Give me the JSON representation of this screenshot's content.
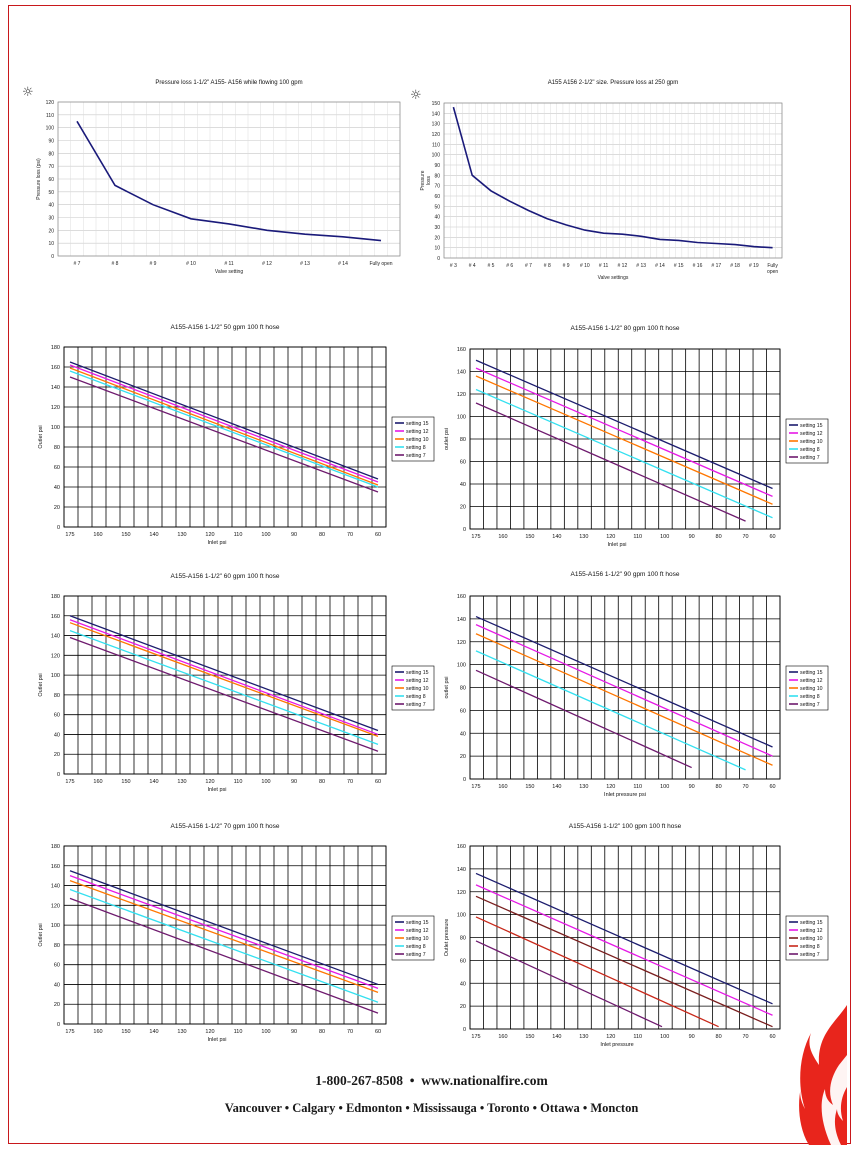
{
  "footer": {
    "phone": "1-800-267-8508",
    "separator": "•",
    "website": "www.nationalfire.com",
    "cities": "Vancouver • Calgary • Edmonton • Mississauga • Toronto • Ottawa • Moncton"
  },
  "colors": {
    "frame": "#c8181c",
    "curve": "#1a1a7a",
    "grid_light": "#c8c8c8",
    "grid_dark": "#000000",
    "setting_15": "#1c1c6e",
    "setting_12": "#e619e6",
    "setting_10": "#ff7700",
    "setting_8": "#33e0f0",
    "setting_7": "#6e1a6e",
    "setting_8_alt": "#c8281a",
    "flame": "#e8251c"
  },
  "icons": [
    "gear-icon",
    "gear-icon",
    "flame-logo"
  ],
  "chart_data": [
    {
      "type": "line",
      "title": "Pressure loss 1-1/2\" A155- A156 while flowing 100 gpm",
      "xlabel": "Valve setting",
      "ylabel": "Pressure loss (psi)",
      "ylim": [
        0,
        120
      ],
      "yticks": [
        0,
        10,
        20,
        30,
        40,
        50,
        60,
        70,
        80,
        90,
        100,
        110,
        120
      ],
      "categories": [
        "# 7",
        "# 8",
        "# 9",
        "# 10",
        "# 11",
        "# 12",
        "# 13",
        "# 14",
        "Fully open"
      ],
      "grid": true,
      "series": [
        {
          "color": "#1a1a7a",
          "values": [
            105,
            55,
            40,
            29,
            25,
            20,
            17,
            15,
            12
          ]
        }
      ]
    },
    {
      "type": "line",
      "title": "A155 A156 2-1/2\" size. Pressure loss at 250 gpm",
      "xlabel": "Valve settings",
      "ylabel": "Pressure loss",
      "ylim": [
        0,
        150
      ],
      "yticks": [
        0,
        10,
        20,
        30,
        40,
        50,
        60,
        70,
        80,
        90,
        100,
        110,
        120,
        130,
        140,
        150
      ],
      "categories": [
        "# 3",
        "# 4",
        "# 5",
        "# 6",
        "# 7",
        "# 8",
        "# 9",
        "# 10",
        "# 11",
        "# 12",
        "# 13",
        "# 14",
        "# 15",
        "# 16",
        "# 17",
        "# 18",
        "# 19",
        "Fully open"
      ],
      "grid": true,
      "series": [
        {
          "color": "#1a1a7a",
          "values": [
            146,
            80,
            65,
            55,
            46,
            38,
            32,
            27,
            24,
            23,
            21,
            18,
            17,
            15,
            14,
            13,
            11,
            10
          ]
        }
      ]
    },
    {
      "type": "line",
      "title": "A155-A156 1-1/2\" 50 gpm 100 ft hose",
      "xlabel": "Inlet psi",
      "ylabel": "Outlet psi",
      "ylim": [
        0,
        180
      ],
      "yticks": [
        0,
        20,
        40,
        60,
        80,
        100,
        120,
        140,
        160,
        180
      ],
      "x_ticks": [
        175,
        160,
        150,
        140,
        130,
        120,
        110,
        100,
        90,
        80,
        70,
        60
      ],
      "legend": "right",
      "series": [
        {
          "name": "setting 15",
          "color": "#1c1c6e",
          "x": [
            175,
            60
          ],
          "y": [
            165,
            48
          ]
        },
        {
          "name": "setting 12",
          "color": "#e619e6",
          "x": [
            175,
            60
          ],
          "y": [
            162,
            45
          ]
        },
        {
          "name": "setting 10",
          "color": "#ff7700",
          "x": [
            175,
            60
          ],
          "y": [
            159,
            42
          ]
        },
        {
          "name": "setting 8",
          "color": "#33e0f0",
          "x": [
            175,
            60
          ],
          "y": [
            156,
            40
          ]
        },
        {
          "name": "setting 7",
          "color": "#6e1a6e",
          "x": [
            175,
            60
          ],
          "y": [
            150,
            35
          ]
        }
      ]
    },
    {
      "type": "line",
      "title": "A155-A156 1-1/2\" 80 gpm 100 ft hose",
      "xlabel": "Inlet psi",
      "ylabel": "outlet psi",
      "ylim": [
        0,
        160
      ],
      "yticks": [
        0,
        20,
        40,
        60,
        80,
        100,
        120,
        140,
        160
      ],
      "x_ticks": [
        175,
        160,
        150,
        140,
        130,
        120,
        110,
        100,
        90,
        80,
        70,
        60
      ],
      "legend": "right",
      "series": [
        {
          "name": "setting 15",
          "color": "#1c1c6e",
          "x": [
            175,
            60
          ],
          "y": [
            150,
            36
          ]
        },
        {
          "name": "setting 12",
          "color": "#e619e6",
          "x": [
            175,
            60
          ],
          "y": [
            143,
            29
          ]
        },
        {
          "name": "setting 10",
          "color": "#ff7700",
          "x": [
            175,
            60
          ],
          "y": [
            136,
            22
          ]
        },
        {
          "name": "setting 8",
          "color": "#33e0f0",
          "x": [
            175,
            60
          ],
          "y": [
            124,
            10
          ]
        },
        {
          "name": "setting 7",
          "color": "#6e1a6e",
          "x": [
            175,
            70
          ],
          "y": [
            112,
            7
          ]
        }
      ]
    },
    {
      "type": "line",
      "title": "A155-A156 1-1/2\" 60 gpm 100 ft hose",
      "xlabel": "Inlet psi",
      "ylabel": "Outlet psi",
      "ylim": [
        0,
        180
      ],
      "yticks": [
        0,
        20,
        40,
        60,
        80,
        100,
        120,
        140,
        160,
        180
      ],
      "x_ticks": [
        175,
        160,
        150,
        140,
        130,
        120,
        110,
        100,
        90,
        80,
        70,
        60
      ],
      "legend": "right",
      "series": [
        {
          "name": "setting 15",
          "color": "#1c1c6e",
          "x": [
            175,
            60
          ],
          "y": [
            160,
            44
          ]
        },
        {
          "name": "setting 12",
          "color": "#e619e6",
          "x": [
            175,
            60
          ],
          "y": [
            156,
            40
          ]
        },
        {
          "name": "setting 10",
          "color": "#ff7700",
          "x": [
            175,
            60
          ],
          "y": [
            153,
            38
          ]
        },
        {
          "name": "setting 8",
          "color": "#33e0f0",
          "x": [
            175,
            60
          ],
          "y": [
            145,
            30
          ]
        },
        {
          "name": "setting 7",
          "color": "#6e1a6e",
          "x": [
            175,
            60
          ],
          "y": [
            138,
            23
          ]
        }
      ]
    },
    {
      "type": "line",
      "title": "A155-A156 1-1/2\" 90 gpm 100 ft hose",
      "xlabel": "Inlet pressure psi",
      "ylabel": "outlet psi",
      "ylim": [
        0,
        160
      ],
      "yticks": [
        0,
        20,
        40,
        60,
        80,
        100,
        120,
        140,
        160
      ],
      "x_ticks": [
        175,
        160,
        150,
        140,
        130,
        120,
        110,
        100,
        90,
        80,
        70,
        60
      ],
      "legend": "right",
      "series": [
        {
          "name": "setting 15",
          "color": "#1c1c6e",
          "x": [
            175,
            60
          ],
          "y": [
            142,
            28
          ]
        },
        {
          "name": "setting 12",
          "color": "#e619e6",
          "x": [
            175,
            60
          ],
          "y": [
            135,
            20
          ]
        },
        {
          "name": "setting 10",
          "color": "#ff7700",
          "x": [
            175,
            60
          ],
          "y": [
            127,
            12
          ]
        },
        {
          "name": "setting 8",
          "color": "#33e0f0",
          "x": [
            175,
            70
          ],
          "y": [
            112,
            8
          ]
        },
        {
          "name": "setting 7",
          "color": "#6e1a6e",
          "x": [
            175,
            90
          ],
          "y": [
            95,
            10
          ]
        }
      ]
    },
    {
      "type": "line",
      "title": "A155-A156 1-1/2\" 70 gpm 100 ft hose",
      "xlabel": "Inlet psi",
      "ylabel": "Outlet psi",
      "ylim": [
        0,
        180
      ],
      "yticks": [
        0,
        20,
        40,
        60,
        80,
        100,
        120,
        140,
        160,
        180
      ],
      "x_ticks": [
        175,
        160,
        150,
        140,
        130,
        120,
        110,
        100,
        90,
        80,
        70,
        60
      ],
      "legend": "right",
      "series": [
        {
          "name": "setting 15",
          "color": "#1c1c6e",
          "x": [
            175,
            60
          ],
          "y": [
            155,
            40
          ]
        },
        {
          "name": "setting 12",
          "color": "#e619e6",
          "x": [
            175,
            60
          ],
          "y": [
            150,
            36
          ]
        },
        {
          "name": "setting 10",
          "color": "#ff7700",
          "x": [
            175,
            60
          ],
          "y": [
            145,
            32
          ]
        },
        {
          "name": "setting 8",
          "color": "#33e0f0",
          "x": [
            175,
            60
          ],
          "y": [
            136,
            22
          ]
        },
        {
          "name": "setting 7",
          "color": "#6e1a6e",
          "x": [
            175,
            60
          ],
          "y": [
            127,
            11
          ]
        }
      ]
    },
    {
      "type": "line",
      "title": "A155-A156 1-1/2\" 100 gpm 100 ft hose",
      "xlabel": "Inlet pressure",
      "ylabel": "Outlet pressure",
      "ylim": [
        0,
        160
      ],
      "yticks": [
        0,
        20,
        40,
        60,
        80,
        100,
        120,
        140,
        160
      ],
      "x_ticks": [
        175,
        160,
        150,
        140,
        130,
        120,
        110,
        100,
        90,
        80,
        70,
        60
      ],
      "legend": "right",
      "series": [
        {
          "name": "setting 15",
          "color": "#1c1c6e",
          "x": [
            175,
            60
          ],
          "y": [
            136,
            22
          ]
        },
        {
          "name": "setting 12",
          "color": "#e619e6",
          "x": [
            175,
            60
          ],
          "y": [
            126,
            12
          ]
        },
        {
          "name": "setting 10",
          "color": "#7a1e1e",
          "x": [
            175,
            60
          ],
          "y": [
            116,
            2
          ]
        },
        {
          "name": "setting 8",
          "color": "#c8281a",
          "x": [
            175,
            80
          ],
          "y": [
            98,
            2
          ]
        },
        {
          "name": "setting 7",
          "color": "#6e1a6e",
          "x": [
            175,
            101
          ],
          "y": [
            77,
            2
          ]
        }
      ]
    }
  ]
}
